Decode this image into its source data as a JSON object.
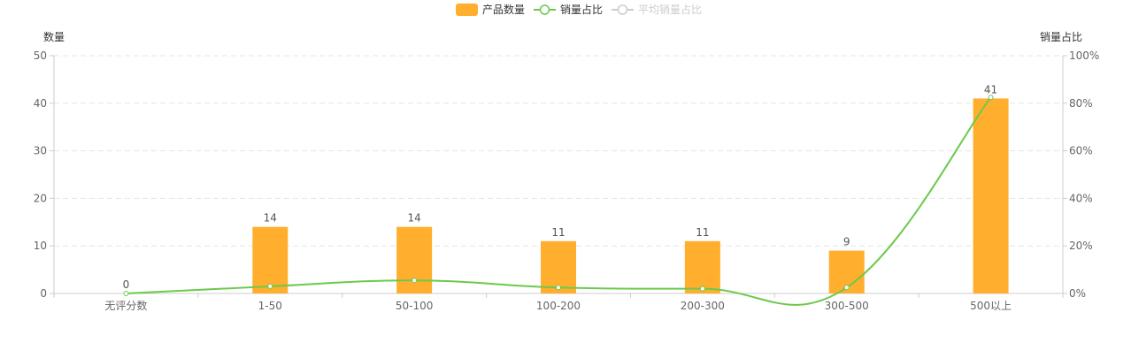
{
  "colors": {
    "bar": "#FFAE2E",
    "line": "#6CC94C",
    "avg_line_inactive": "#CCCCCC",
    "axis_text": "#666666",
    "grid": "#E6E6E6",
    "axis_line": "#CCCCCC"
  },
  "legend": {
    "items": [
      {
        "label": "产品数量",
        "type": "bar",
        "active": true
      },
      {
        "label": "销量占比",
        "type": "line",
        "active": true
      },
      {
        "label": "平均销量占比",
        "type": "line",
        "active": false
      }
    ]
  },
  "chart_data": {
    "type": "bar",
    "categories": [
      "无评分数",
      "1-50",
      "50-100",
      "100-200",
      "200-300",
      "300-500",
      "500以上"
    ],
    "y_left": {
      "label": "数量",
      "min": 0,
      "max": 50,
      "ticks": [
        0,
        10,
        20,
        30,
        40,
        50
      ]
    },
    "y_right": {
      "label": "销量占比",
      "min": 0,
      "max": 100,
      "ticks": [
        "0%",
        "20%",
        "40%",
        "60%",
        "80%",
        "100%"
      ]
    },
    "grid": true,
    "legend_position": "top-center",
    "series": [
      {
        "name": "产品数量",
        "type": "bar",
        "axis": "left",
        "values": [
          0,
          14,
          14,
          11,
          11,
          9,
          41
        ],
        "data_labels": [
          "0",
          "14",
          "14",
          "11",
          "11",
          "9",
          "41"
        ]
      },
      {
        "name": "销量占比",
        "type": "line",
        "axis": "right",
        "smooth": true,
        "values": [
          0,
          3,
          5.5,
          2.5,
          2,
          2.5,
          82.5
        ]
      }
    ]
  }
}
